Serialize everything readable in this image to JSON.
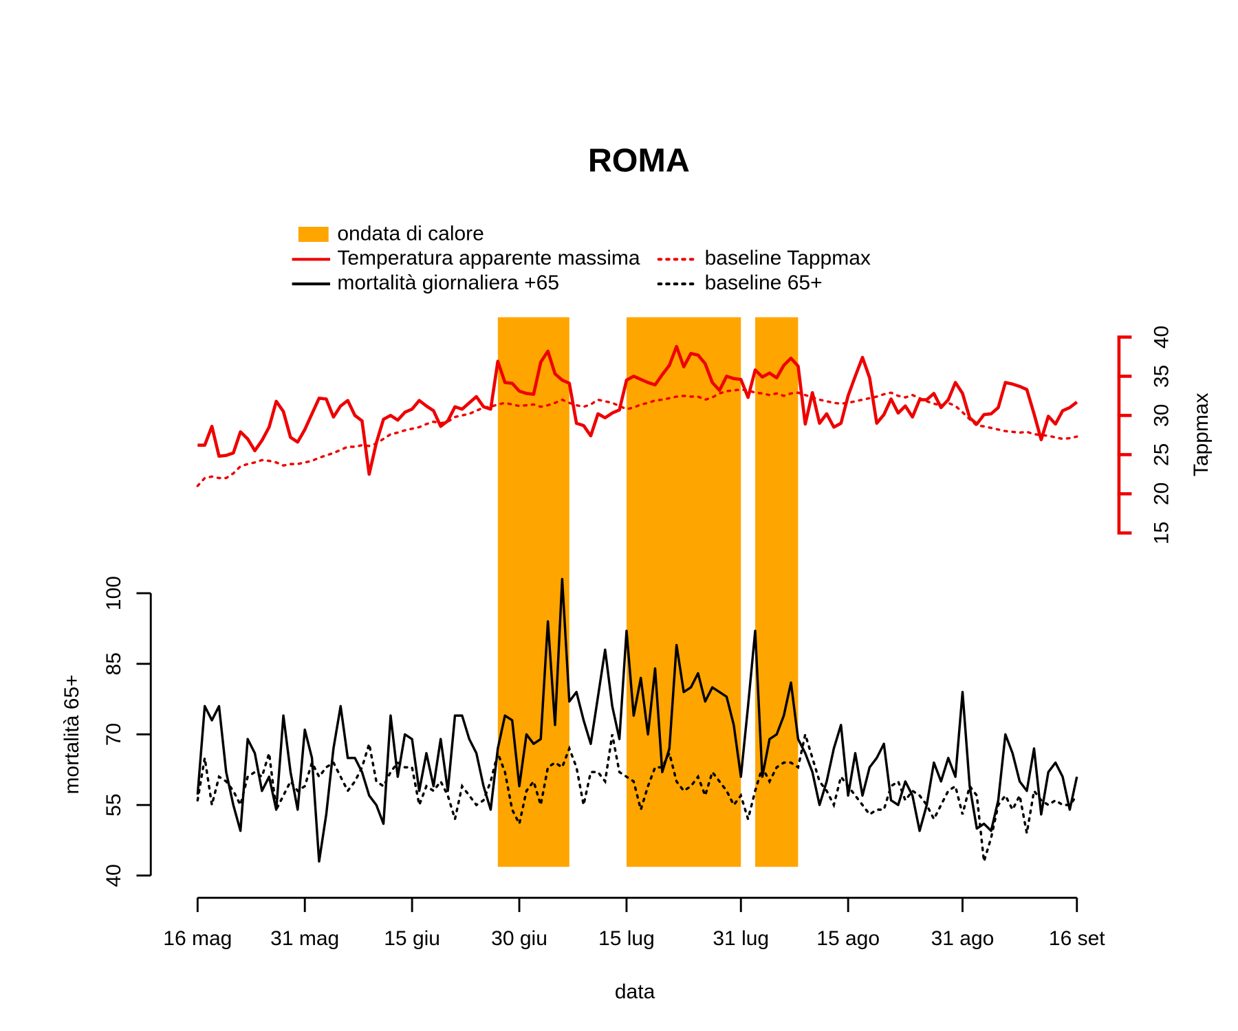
{
  "chart_data": {
    "type": "line",
    "title": "ROMA",
    "xlabel": "data",
    "ylabel": "mortalità 65+",
    "y2label": "Tappmax",
    "x": [
      0,
      1,
      2,
      3,
      4,
      5,
      6,
      7,
      8,
      9,
      10,
      11,
      12,
      13,
      14,
      15,
      16,
      17,
      18,
      19,
      20,
      21,
      22,
      23,
      24,
      25,
      26,
      27,
      28,
      29,
      30,
      31,
      32,
      33,
      34,
      35,
      36,
      37,
      38,
      39,
      40,
      41,
      42,
      43,
      44,
      45,
      46,
      47,
      48,
      49,
      50,
      51,
      52,
      53,
      54,
      55,
      56,
      57,
      58,
      59,
      60,
      61,
      62,
      63,
      64,
      65,
      66,
      67,
      68,
      69,
      70,
      71,
      72,
      73,
      74,
      75,
      76,
      77,
      78,
      79,
      80,
      81,
      82,
      83,
      84,
      85,
      86,
      87,
      88,
      89,
      90,
      91,
      92,
      93,
      94,
      95,
      96,
      97,
      98,
      99,
      100,
      101,
      102,
      103,
      104,
      105,
      106,
      107,
      108,
      109,
      110,
      111,
      112,
      113,
      114,
      115,
      116,
      117,
      118,
      119,
      120,
      121,
      122,
      123
    ],
    "xlim": [
      0,
      123
    ],
    "xticks": [
      {
        "value": 0,
        "label": "16 mag"
      },
      {
        "value": 15,
        "label": "31 mag"
      },
      {
        "value": 30,
        "label": "15 giu"
      },
      {
        "value": 45,
        "label": "30 giu"
      },
      {
        "value": 60,
        "label": "15 lug"
      },
      {
        "value": 76,
        "label": "31 lug"
      },
      {
        "value": 91,
        "label": "15 ago"
      },
      {
        "value": 107,
        "label": "31 ago"
      },
      {
        "value": 123,
        "label": "16 set"
      }
    ],
    "ylim": [
      40,
      100
    ],
    "yticks": [
      40,
      55,
      70,
      85,
      100
    ],
    "y2lim": [
      15,
      40
    ],
    "y2ticks": [
      15,
      20,
      25,
      30,
      35,
      40
    ],
    "y2color": "#ee0000",
    "bands": {
      "name": "ondata di calore",
      "color": "#ffa500",
      "ranges": [
        [
          42,
          52
        ],
        [
          60,
          76
        ],
        [
          78,
          84
        ]
      ]
    },
    "series": [
      {
        "name": "Temperatura apparente massima",
        "color": "#ee0000",
        "linestyle": "solid",
        "axis": "y2",
        "values": [
          26.2,
          26.2,
          28.6,
          24.8,
          24.9,
          25.2,
          27.9,
          27,
          25.5,
          26.8,
          28.5,
          31.8,
          30.5,
          27.2,
          26.6,
          28.2,
          30.2,
          32.2,
          32.1,
          29.8,
          31.2,
          31.9,
          30,
          29.3,
          22.5,
          26.5,
          29.5,
          30,
          29.4,
          30.4,
          30.8,
          31.9,
          31.2,
          30.6,
          28.6,
          29.3,
          31.1,
          30.8,
          31.6,
          32.4,
          31.1,
          30.8,
          36.9,
          34.2,
          34.1,
          33.1,
          32.8,
          32.7,
          36.8,
          38.2,
          35.3,
          34.5,
          34.1,
          29,
          28.7,
          27.4,
          30.2,
          29.7,
          30.3,
          30.7,
          34.5,
          35,
          34.6,
          34.2,
          33.9,
          35.2,
          36.4,
          38.8,
          36.2,
          37.9,
          37.7,
          36.6,
          34.2,
          33.2,
          35,
          34.7,
          34.6,
          32.3,
          35.8,
          34.9,
          35.4,
          34.8,
          36.4,
          37.3,
          36.3,
          28.9,
          32.9,
          29,
          30.2,
          28.5,
          29,
          32.5,
          35,
          37.4,
          34.8,
          29,
          30.1,
          32.1,
          30.3,
          31.2,
          29.8,
          32,
          32,
          32.8,
          31,
          32,
          34.2,
          32.8,
          29.7,
          28.9,
          30.1,
          30.2,
          31,
          34.2,
          34,
          33.7,
          33.3,
          30.2,
          26.9,
          29.9,
          28.9,
          30.6,
          31,
          31.7
        ]
      },
      {
        "name": "mortalità giornaliera +65",
        "color": "#000000",
        "linestyle": "solid",
        "axis": "y",
        "values": [
          57.2,
          76,
          73,
          76,
          62,
          55,
          49.5,
          69,
          66,
          58,
          61,
          54,
          74,
          62,
          54,
          71,
          65,
          43,
          53,
          67,
          76,
          65,
          65,
          62,
          57,
          55,
          51,
          74,
          61,
          70,
          69,
          58,
          66,
          59,
          69,
          58,
          74,
          74,
          69,
          66,
          59,
          54,
          67,
          74,
          73,
          59,
          70,
          68,
          69,
          94,
          72,
          103,
          77,
          79,
          73,
          68,
          78,
          88,
          76,
          69,
          92,
          74,
          82,
          70,
          84,
          62,
          67,
          89,
          79,
          80,
          83,
          77,
          80,
          79,
          78,
          72,
          61,
          76,
          92,
          61,
          69,
          70,
          74,
          81,
          69,
          66,
          62,
          55,
          60,
          67,
          72,
          57,
          66,
          57,
          63,
          65,
          68,
          56,
          55,
          60,
          57,
          49.5,
          55,
          64,
          60,
          65,
          61,
          79,
          59,
          50,
          51,
          49.5,
          56,
          70,
          66,
          60,
          58,
          67,
          53,
          62,
          64,
          61,
          54,
          61
        ]
      },
      {
        "name": "baseline Tappmax",
        "color": "#ee0000",
        "linestyle": "dotted",
        "axis": "y2",
        "values": [
          21,
          22,
          22.2,
          22,
          22,
          22.6,
          23.5,
          23.8,
          24,
          24.3,
          24.2,
          24,
          23.6,
          23.8,
          23.8,
          24,
          24.2,
          24.6,
          24.9,
          25.2,
          25.6,
          26,
          26,
          26.2,
          26.1,
          26.4,
          27,
          27.6,
          27.8,
          28.1,
          28.3,
          28.5,
          28.9,
          29.2,
          29,
          29.2,
          29.8,
          30,
          30.2,
          30.6,
          31,
          31.1,
          31.4,
          31.6,
          31.4,
          31.2,
          31.3,
          31.4,
          31.1,
          31.3,
          31.6,
          32,
          31.6,
          31.3,
          31.1,
          31.4,
          32,
          31.8,
          31.6,
          31.2,
          30.8,
          31,
          31.4,
          31.6,
          31.9,
          32,
          32.2,
          32.4,
          32.5,
          32.4,
          32.4,
          32,
          32.3,
          32.8,
          33.1,
          33.2,
          33.3,
          33.2,
          32.9,
          32.8,
          32.6,
          32.8,
          32.5,
          32.8,
          32.9,
          32.6,
          32.3,
          32,
          31.8,
          31.6,
          31.5,
          31.6,
          31.8,
          32,
          32.2,
          32.4,
          32.7,
          32.9,
          32.5,
          32.3,
          32.6,
          32.2,
          31.8,
          31.5,
          31.3,
          31.6,
          31.2,
          30.4,
          29.5,
          28.7,
          28.6,
          28.4,
          28.2,
          28,
          27.9,
          27.8,
          27.9,
          27.6,
          27.5,
          27.4,
          27.2,
          27,
          27.1,
          27.3
        ]
      },
      {
        "name": "baseline 65+",
        "color": "#000000",
        "linestyle": "dotted",
        "axis": "y",
        "values": [
          56,
          65,
          55,
          61,
          60,
          58,
          55,
          61,
          62,
          61,
          66,
          54,
          57,
          60,
          58,
          59,
          64,
          61,
          63,
          64,
          61,
          58,
          60,
          63,
          68,
          60,
          59,
          62,
          64,
          63,
          63,
          55,
          59,
          58,
          60,
          57,
          52,
          59,
          57,
          55,
          56,
          60,
          66,
          62,
          54,
          51,
          58,
          60,
          55,
          63,
          64,
          63,
          67,
          63,
          55,
          62,
          62,
          60,
          70,
          62,
          61,
          60,
          54,
          59,
          63,
          63,
          66,
          60,
          58,
          59,
          61,
          57,
          62,
          60,
          58,
          55,
          57,
          52,
          58,
          63,
          60,
          63,
          64,
          64,
          63,
          70,
          65,
          60,
          58,
          55,
          61,
          59,
          57,
          55,
          53,
          54,
          54,
          59,
          60,
          56,
          58,
          57,
          55,
          52,
          55,
          58,
          59,
          53,
          59,
          57,
          43,
          48,
          55,
          57,
          54,
          57,
          49,
          58,
          56,
          55,
          56,
          55,
          55,
          57
        ]
      }
    ]
  }
}
